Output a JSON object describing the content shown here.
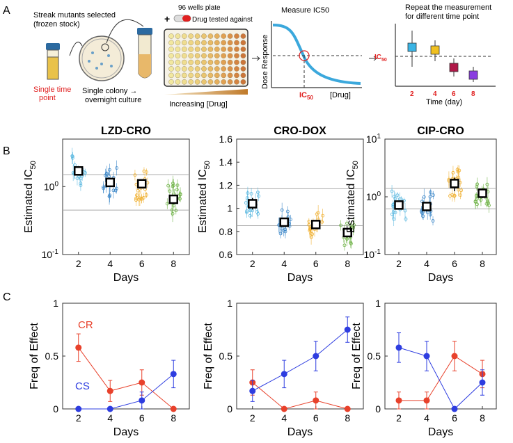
{
  "panels": {
    "a": "A",
    "b": "B",
    "c": "C"
  },
  "workflow": {
    "streak_text": [
      "Streak mutants selected",
      "(frozen stock)"
    ],
    "single_time_point": [
      "Single time",
      "point"
    ],
    "single_colony": [
      "Single colony →",
      "overnight culture"
    ],
    "plate_title": "96 wells plate",
    "plus": "+",
    "drug_tested": "Drug tested against",
    "increasing_drug": "Increasing [Drug]",
    "measure_title": "Measure IC50",
    "dose_ylabel": "Dose Response",
    "drug_xlabel": "[Drug]",
    "ic50_main": "IC",
    "ic50_sub": "50",
    "repeat_title": [
      "Repeat the measurement",
      "for different time point"
    ],
    "time_xlabel": "Time (day)",
    "time_ticks": [
      "2",
      "4",
      "6",
      "8"
    ]
  },
  "chart_data": [
    {
      "type": "scatter",
      "panel": "B",
      "title": "LZD-CRO",
      "yscale": "log",
      "ylim": [
        0.1,
        5
      ],
      "xlabel": "Days",
      "ylabel": "Estimated IC50",
      "x": [
        2,
        4,
        6,
        8
      ],
      "mean": [
        1.7,
        1.15,
        1.1,
        0.65
      ],
      "mean_err": [
        0.2,
        0.15,
        0.15,
        0.1
      ],
      "ref_lines": [
        1.5,
        0.45
      ],
      "yticks": [
        {
          "v": 0.1,
          "l": "10^-1"
        },
        {
          "v": 1,
          "l": "10^0"
        }
      ],
      "series_colors": [
        "#5ab8e0",
        "#3a86c8",
        "#f0b030",
        "#6ab040"
      ]
    },
    {
      "type": "scatter",
      "panel": "B",
      "title": "CRO-DOX",
      "yscale": "linear",
      "ylim": [
        0.6,
        1.6
      ],
      "xlabel": "Days",
      "ylabel": "Estimated IC50",
      "x": [
        2,
        4,
        6,
        8
      ],
      "mean": [
        1.04,
        0.88,
        0.86,
        0.79
      ],
      "mean_err": [
        0.05,
        0.03,
        0.03,
        0.02
      ],
      "ref_lines": [
        1.17,
        0.85
      ],
      "yticks": [
        {
          "v": 0.6,
          "l": "0.6"
        },
        {
          "v": 0.8,
          "l": "0.8"
        },
        {
          "v": 1.0,
          "l": "1"
        },
        {
          "v": 1.2,
          "l": "1.2"
        },
        {
          "v": 1.4,
          "l": "1.4"
        },
        {
          "v": 1.6,
          "l": "1.6"
        }
      ],
      "series_colors": [
        "#5ab8e0",
        "#3a86c8",
        "#f0b030",
        "#6ab040"
      ]
    },
    {
      "type": "scatter",
      "panel": "B",
      "title": "CIP-CRO",
      "yscale": "log",
      "ylim": [
        0.1,
        10
      ],
      "xlabel": "Days",
      "ylabel": "Estimated IC50",
      "x": [
        2,
        4,
        6,
        8
      ],
      "mean": [
        0.72,
        0.68,
        1.7,
        1.15
      ],
      "mean_err": [
        0.12,
        0.12,
        0.45,
        0.2
      ],
      "ref_lines": [
        1.4,
        0.62
      ],
      "yticks": [
        {
          "v": 0.1,
          "l": "10^-1"
        },
        {
          "v": 1,
          "l": "10^0"
        },
        {
          "v": 10,
          "l": "10^1"
        }
      ],
      "series_colors": [
        "#5ab8e0",
        "#3a86c8",
        "#f0b030",
        "#6ab040"
      ]
    },
    {
      "type": "line",
      "panel": "C",
      "xlabel": "Days",
      "ylabel": "Freq of Effect",
      "ylim": [
        0,
        1
      ],
      "x": [
        2,
        4,
        6,
        8
      ],
      "yticks": [
        {
          "v": 0,
          "l": "0"
        },
        {
          "v": 0.5,
          "l": "0.5"
        },
        {
          "v": 1,
          "l": "1"
        }
      ],
      "labels": {
        "CR": "CR",
        "CS": "CS"
      },
      "series": [
        {
          "name": "CR",
          "color": "#e8412b",
          "values": [
            0.58,
            0.17,
            0.25,
            0.0
          ],
          "err": [
            0.13,
            0.1,
            0.12,
            0
          ]
        },
        {
          "name": "CS",
          "color": "#2e3de0",
          "values": [
            0.0,
            0.0,
            0.08,
            0.33
          ],
          "err": [
            0,
            0,
            0.08,
            0.13
          ]
        }
      ]
    },
    {
      "type": "line",
      "panel": "C",
      "xlabel": "Days",
      "ylabel": "Freq of Effect",
      "ylim": [
        0,
        1
      ],
      "x": [
        2,
        4,
        6,
        8
      ],
      "yticks": [
        {
          "v": 0,
          "l": "0"
        },
        {
          "v": 0.5,
          "l": "0.5"
        },
        {
          "v": 1,
          "l": "1"
        }
      ],
      "series": [
        {
          "name": "CR",
          "color": "#e8412b",
          "values": [
            0.25,
            0.0,
            0.08,
            0.0
          ],
          "err": [
            0.12,
            0,
            0.08,
            0
          ]
        },
        {
          "name": "CS",
          "color": "#2e3de0",
          "values": [
            0.17,
            0.33,
            0.5,
            0.75
          ],
          "err": [
            0.1,
            0.13,
            0.14,
            0.12
          ]
        }
      ]
    },
    {
      "type": "line",
      "panel": "C",
      "xlabel": "Days",
      "ylabel": "Freq of Effect",
      "ylim": [
        0,
        1
      ],
      "x": [
        2,
        4,
        6,
        8
      ],
      "yticks": [
        {
          "v": 0,
          "l": "0"
        },
        {
          "v": 0.5,
          "l": "0.5"
        },
        {
          "v": 1,
          "l": "1"
        }
      ],
      "series": [
        {
          "name": "CR",
          "color": "#e8412b",
          "values": [
            0.08,
            0.08,
            0.5,
            0.33
          ],
          "err": [
            0.08,
            0.08,
            0.14,
            0.13
          ]
        },
        {
          "name": "CS",
          "color": "#2e3de0",
          "values": [
            0.58,
            0.5,
            0.0,
            0.25
          ],
          "err": [
            0.14,
            0.14,
            0,
            0.12
          ]
        }
      ]
    }
  ]
}
